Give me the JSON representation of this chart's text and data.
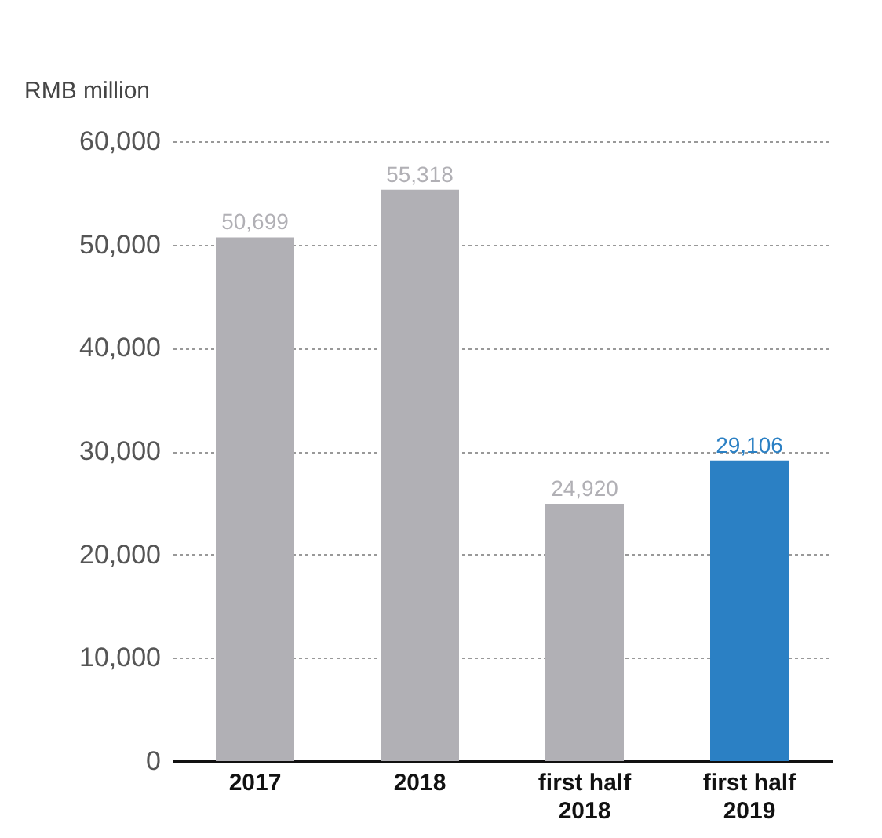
{
  "chart_data": {
    "type": "bar",
    "ylabel": "RMB million",
    "categories": [
      "2017",
      "2018",
      "first half 2018",
      "first half 2019"
    ],
    "values": [
      50699,
      55318,
      24920,
      29106
    ],
    "colors": [
      "#b1b0b5",
      "#b1b0b5",
      "#b1b0b5",
      "#2b80c4"
    ],
    "value_labels": [
      "50,699",
      "55,318",
      "24,920",
      "29,106"
    ],
    "ylim": [
      0,
      60000
    ],
    "yticks": [
      0,
      {
        "value": 10000,
        "label": "10,000"
      },
      {
        "value": 20000,
        "label": "20,000"
      },
      {
        "value": 30000,
        "label": "30,000"
      },
      {
        "value": 40000,
        "label": "40,000"
      },
      {
        "value": 50000,
        "label": "50,000"
      },
      {
        "value": 60000,
        "label": "60,000"
      }
    ],
    "grid": "y"
  }
}
